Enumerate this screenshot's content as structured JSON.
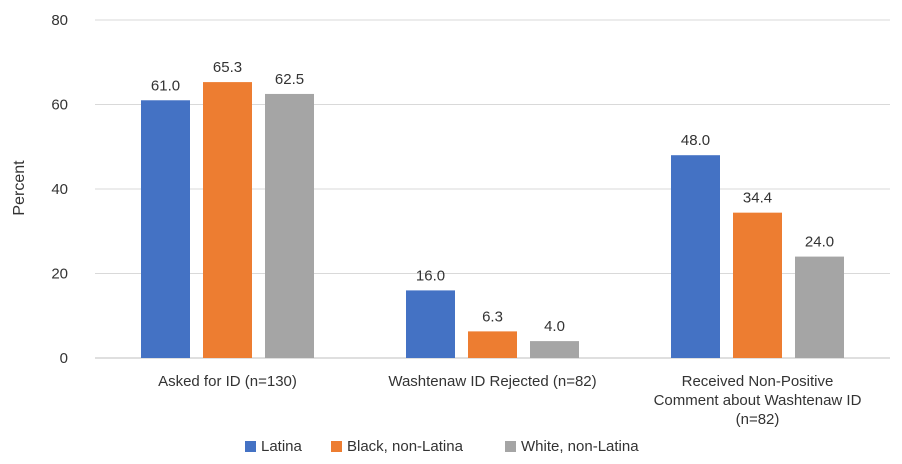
{
  "chart_data": {
    "type": "bar",
    "title": "",
    "xlabel": "",
    "ylabel": "Percent",
    "ylim": [
      0,
      80
    ],
    "yticks": [
      0,
      20,
      40,
      60,
      80
    ],
    "grid": true,
    "legend_position": "bottom",
    "categories": [
      [
        "Asked for ID (n=130)"
      ],
      [
        "Washtenaw ID Rejected (n=82)"
      ],
      [
        "Received Non-Positive",
        "Comment about Washtenaw ID",
        "(n=82)"
      ]
    ],
    "series": [
      {
        "name": "Latina",
        "color": "#4472C4",
        "values": [
          61.0,
          16.0,
          48.0
        ],
        "labels": [
          "61.0",
          "16.0",
          "48.0"
        ]
      },
      {
        "name": "Black, non-Latina",
        "color": "#ED7D31",
        "values": [
          65.3,
          6.3,
          34.4
        ],
        "labels": [
          "65.3",
          "6.3",
          "34.4"
        ]
      },
      {
        "name": "White, non-Latina",
        "color": "#A5A5A5",
        "values": [
          62.5,
          4.0,
          24.0
        ],
        "labels": [
          "62.5",
          "4.0",
          "24.0"
        ]
      }
    ]
  }
}
